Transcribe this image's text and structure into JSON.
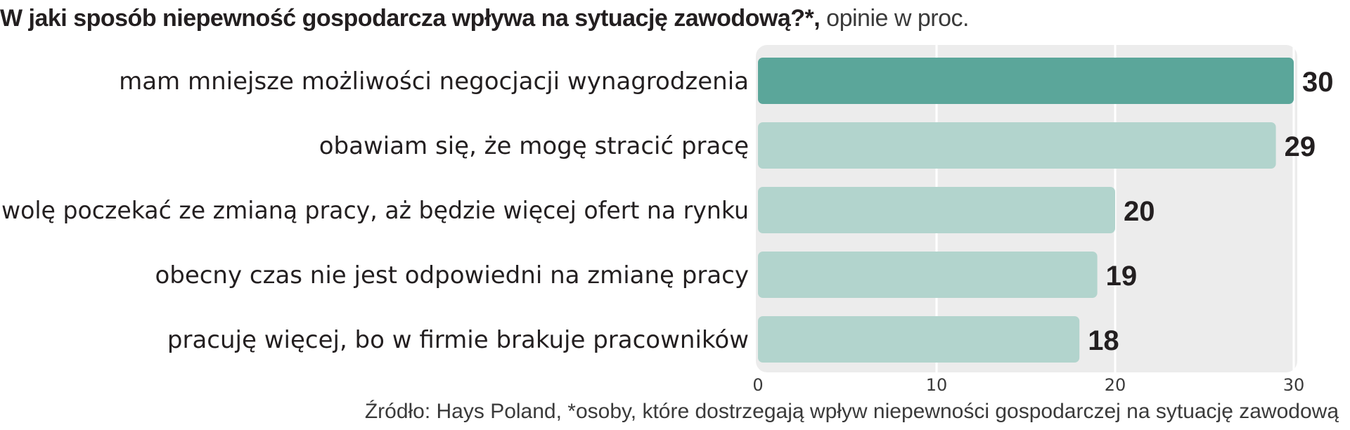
{
  "header": {
    "title_main": "W jaki sposób niepewność gospodarcza wpływa na sytuację zawodową?*,",
    "title_sub": " opinie w proc."
  },
  "footer": {
    "source": "Źródło: Hays Poland, *osoby, które dostrzegają wpływ niepewności gospodarczej na sytuację zawodową"
  },
  "colors": {
    "highlight_bar": "#5ba69a",
    "bar": "#b2d4cd",
    "plot_background": "#ececec",
    "gridline": "#ffffff"
  },
  "chart_data": {
    "type": "bar",
    "orientation": "horizontal",
    "categories": [
      "mam mniejsze możliwości negocjacji wynagrodzenia",
      "obawiam się, że mogę stracić pracę",
      "wolę poczekać ze zmianą pracy, aż będzie więcej ofert na rynku",
      "obecny czas nie jest odpowiedni na zmianę pracy",
      "pracuję więcej, bo w firmie brakuje pracowników"
    ],
    "values": [
      30,
      29,
      20,
      19,
      18
    ],
    "value_labels": [
      "30",
      "29",
      "20",
      "19",
      "18"
    ],
    "highlight_index": 0,
    "xlim": [
      0,
      30
    ],
    "xticks": [
      0,
      10,
      20,
      30
    ],
    "xtick_labels": [
      "0",
      "10",
      "20",
      "30"
    ],
    "grid": true
  }
}
